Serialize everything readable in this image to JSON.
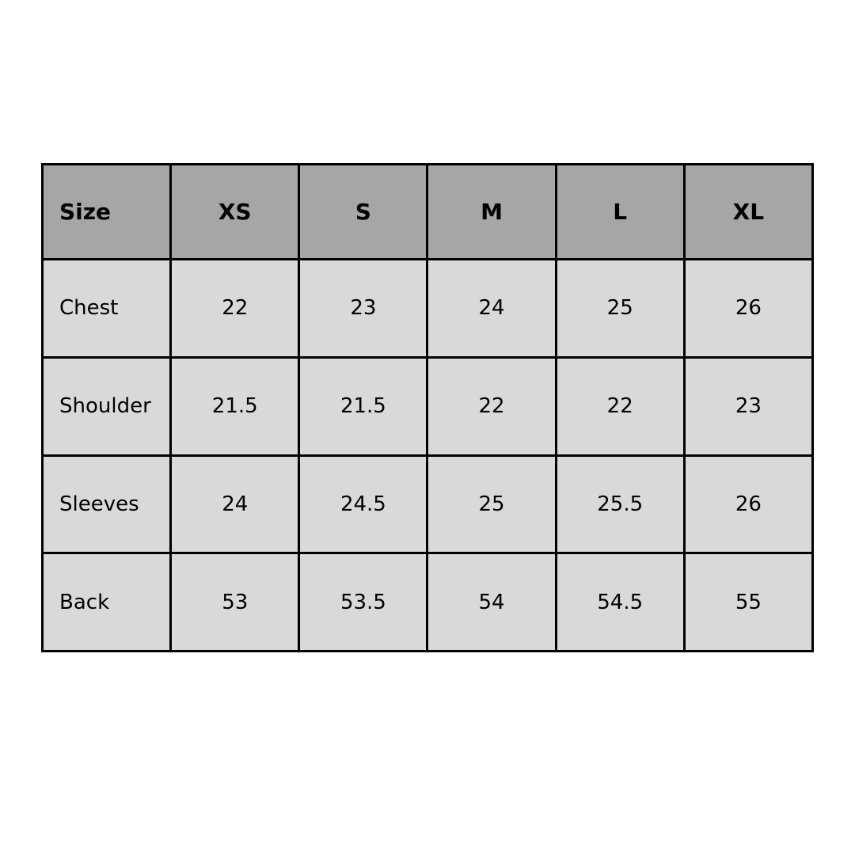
{
  "table": {
    "headers": [
      "Size",
      "XS",
      "S",
      "M",
      "L",
      "XL"
    ],
    "rows": [
      [
        "Chest",
        "22",
        "23",
        "24",
        "25",
        "26"
      ],
      [
        "Shoulder",
        "21.5",
        "21.5",
        "22",
        "22",
        "23"
      ],
      [
        "Sleeves",
        "24",
        "24.5",
        "25",
        "25.5",
        "26"
      ],
      [
        "Back",
        "53",
        "53.5",
        "54",
        "54.5",
        "55"
      ]
    ]
  },
  "colors": {
    "header_bg": "#a6a6a6",
    "body_bg": "#d9d9d9",
    "border": "#000000"
  }
}
